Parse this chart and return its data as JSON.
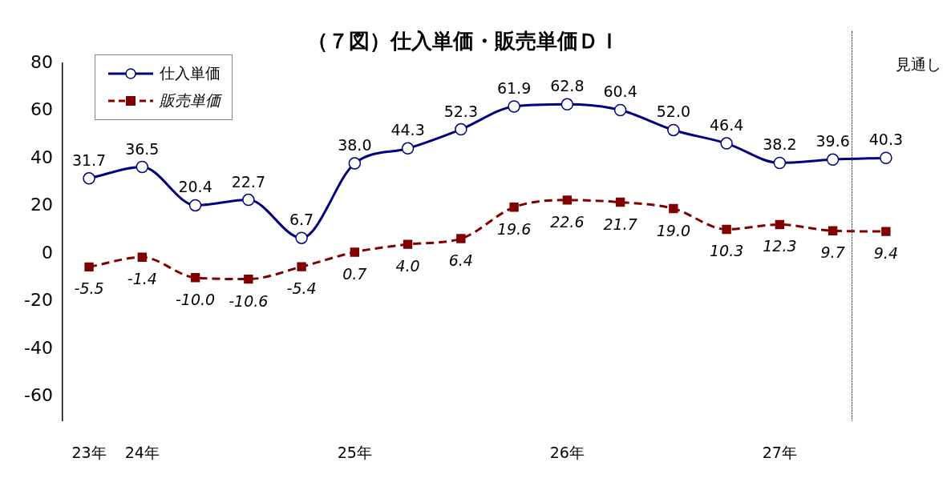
{
  "chart_data": {
    "type": "line",
    "title": "（７図）仕入単価・販売単価ＤＩ",
    "categories": [
      "23年",
      "24年",
      null,
      null,
      null,
      "25年",
      null,
      null,
      null,
      "26年",
      null,
      null,
      null,
      "27年",
      null,
      null
    ],
    "series": [
      {
        "name": "仕入単価",
        "color": "#000080",
        "marker": "circle",
        "line_style": "solid",
        "values": [
          31.7,
          36.5,
          20.4,
          22.7,
          6.7,
          38.0,
          44.3,
          52.3,
          61.9,
          62.8,
          60.4,
          52.0,
          46.4,
          38.2,
          39.6,
          40.3
        ],
        "value_labels": [
          "31.7",
          "36.5",
          "20.4",
          "22.7",
          "6.7",
          "38.0",
          "44.3",
          "52.3",
          "61.9",
          "62.8",
          "60.4",
          "52.0",
          "46.4",
          "38.2",
          "39.6",
          "40.3"
        ]
      },
      {
        "name": "販売単価",
        "color": "#800000",
        "marker": "square",
        "line_style": "dashed",
        "values": [
          -5.5,
          -1.4,
          -10.0,
          -10.6,
          -5.4,
          0.7,
          4.0,
          6.4,
          19.6,
          22.6,
          21.7,
          19.0,
          10.3,
          12.3,
          9.7,
          9.4
        ],
        "value_labels": [
          "-5.5",
          "-1.4",
          "-10.0",
          "-10.6",
          "-5.4",
          "0.7",
          "4.0",
          "6.4",
          "19.6",
          "22.6",
          "21.7",
          "19.0",
          "10.3",
          "12.3",
          "9.7",
          "9.4"
        ]
      }
    ],
    "ylim": [
      -70,
      80
    ],
    "yticks": [
      -60,
      -40,
      -20,
      0,
      20,
      40,
      60,
      80
    ],
    "grid": false,
    "legend": "top left",
    "annotations": [
      "見通し"
    ]
  }
}
